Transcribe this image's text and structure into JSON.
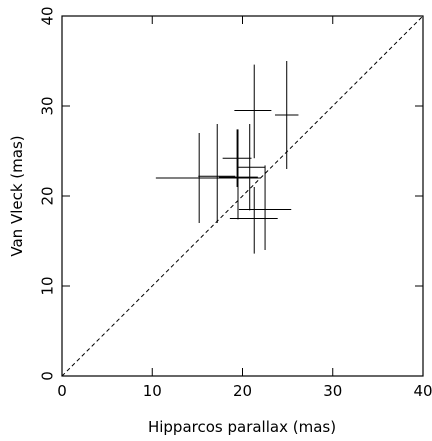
{
  "chart_data": {
    "type": "scatter",
    "xlabel": "Hipparcos parallax (mas)",
    "ylabel": "Van Vleck (mas)",
    "xlim": [
      0,
      40
    ],
    "ylim": [
      0,
      40
    ],
    "xticks": [
      0,
      10,
      20,
      30,
      40
    ],
    "yticks": [
      0,
      10,
      20,
      30,
      40
    ],
    "grid": false,
    "reference_line": {
      "style": "dashed",
      "from": [
        0,
        0
      ],
      "to": [
        40,
        40
      ]
    },
    "points": [
      {
        "x": 15.2,
        "y": 22.0,
        "x_err": [
          10.4,
          22.0
        ],
        "y_err": [
          17.0,
          27.0
        ]
      },
      {
        "x": 17.2,
        "y": 22.2,
        "x_err": [
          15.1,
          19.2
        ],
        "y_err": [
          17.0,
          28.0
        ]
      },
      {
        "x": 19.5,
        "y": 22.1,
        "x_err": [
          17.4,
          21.7
        ],
        "y_err": [
          17.4,
          27.4
        ]
      },
      {
        "x": 19.4,
        "y": 24.2,
        "x_err": [
          17.8,
          21.0
        ],
        "y_err": [
          21.0,
          27.4
        ]
      },
      {
        "x": 20.8,
        "y": 23.2,
        "x_err": [
          19.4,
          22.5
        ],
        "y_err": [
          18.4,
          28.0
        ]
      },
      {
        "x": 21.3,
        "y": 29.5,
        "x_err": [
          19.1,
          23.2
        ],
        "y_err": [
          24.2,
          34.6
        ]
      },
      {
        "x": 21.3,
        "y": 17.5,
        "x_err": [
          18.6,
          23.9
        ],
        "y_err": [
          13.6,
          21.0
        ]
      },
      {
        "x": 22.5,
        "y": 18.5,
        "x_err": [
          19.6,
          25.4
        ],
        "y_err": [
          14.0,
          23.4
        ]
      },
      {
        "x": 24.9,
        "y": 29.0,
        "x_err": [
          23.6,
          26.2
        ],
        "y_err": [
          23.0,
          35.0
        ]
      }
    ]
  }
}
